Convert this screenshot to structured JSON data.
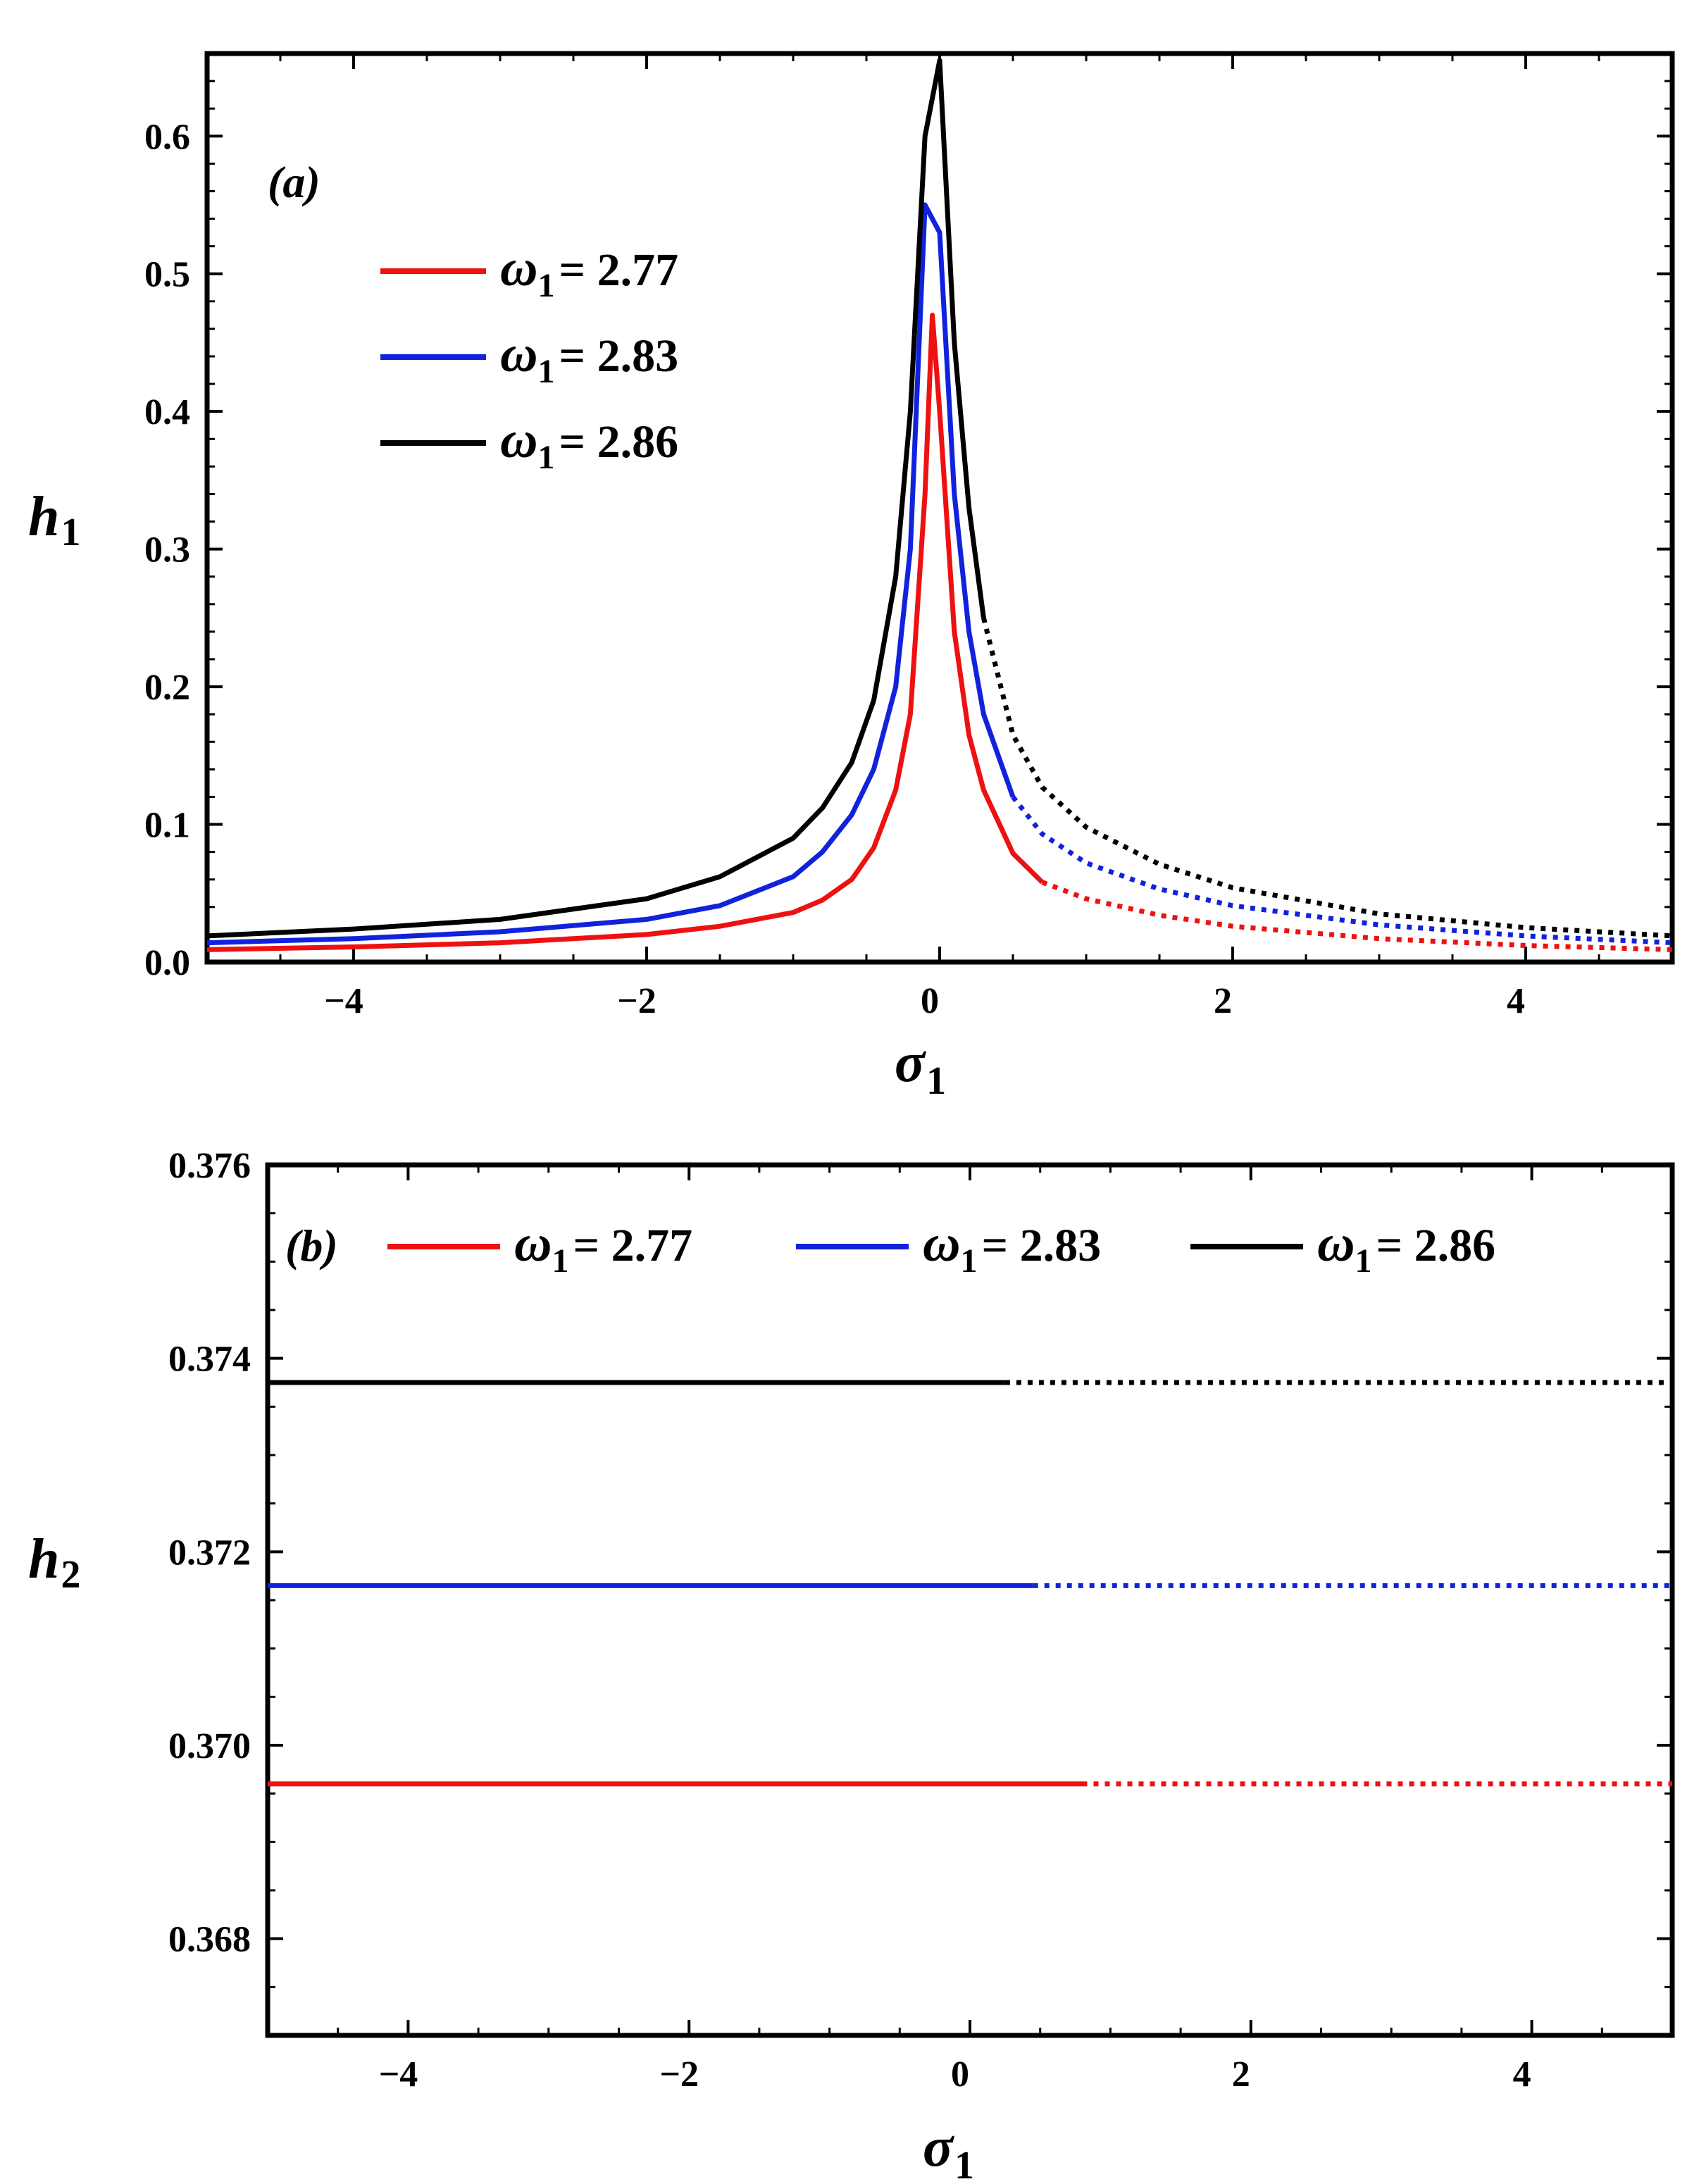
{
  "chart_data": [
    {
      "type": "line",
      "panel_label": "(a)",
      "xlabel": "σ",
      "xlabel_sub": "1",
      "ylabel": "h",
      "ylabel_sub": "1",
      "xlim": [
        -5,
        5
      ],
      "ylim": [
        0,
        0.66
      ],
      "xticks": [
        -4,
        -2,
        0,
        2,
        4
      ],
      "xtick_labels": [
        "−4",
        "−2",
        "0",
        "2",
        "4"
      ],
      "yticks": [
        0,
        0.1,
        0.2,
        0.3,
        0.4,
        0.5,
        0.6
      ],
      "ytick_labels": [
        "0.0",
        "0.1",
        "0.2",
        "0.3",
        "0.4",
        "0.5",
        "0.6"
      ],
      "legend_position": "upper-left",
      "note": "solid = stable, dotted = unstable",
      "series": [
        {
          "name": "ω1 = 2.77",
          "symbol": "ω",
          "sub": "1",
          "eq": "= 2.77",
          "color": "#ee1111",
          "x": [
            -5,
            -4,
            -3,
            -2,
            -1.5,
            -1,
            -0.8,
            -0.6,
            -0.45,
            -0.3,
            -0.2,
            -0.1,
            -0.05,
            0,
            0.1,
            0.2,
            0.3,
            0.5,
            0.7,
            1,
            1.5,
            2,
            3,
            4,
            5
          ],
          "y": [
            0.009,
            0.011,
            0.014,
            0.02,
            0.026,
            0.036,
            0.045,
            0.06,
            0.083,
            0.125,
            0.18,
            0.34,
            0.47,
            0.4,
            0.24,
            0.165,
            0.125,
            0.079,
            0.058,
            0.046,
            0.034,
            0.026,
            0.017,
            0.012,
            0.009
          ],
          "stable_until": 0.7
        },
        {
          "name": "ω1 = 2.83",
          "symbol": "ω",
          "sub": "1",
          "eq": "= 2.83",
          "color": "#1122dd",
          "x": [
            -5,
            -4,
            -3,
            -2,
            -1.5,
            -1,
            -0.8,
            -0.6,
            -0.45,
            -0.3,
            -0.2,
            -0.1,
            0,
            0.1,
            0.2,
            0.3,
            0.5,
            0.7,
            1,
            1.5,
            2,
            3,
            4,
            5
          ],
          "y": [
            0.014,
            0.017,
            0.022,
            0.031,
            0.041,
            0.062,
            0.08,
            0.107,
            0.14,
            0.2,
            0.3,
            0.55,
            0.53,
            0.34,
            0.24,
            0.18,
            0.12,
            0.093,
            0.072,
            0.053,
            0.041,
            0.027,
            0.019,
            0.014
          ],
          "stable_until": 0.5
        },
        {
          "name": "ω1 = 2.86",
          "symbol": "ω",
          "sub": "1",
          "eq": "= 2.86",
          "color": "#000000",
          "x": [
            -5,
            -4,
            -3,
            -2,
            -1.5,
            -1,
            -0.8,
            -0.6,
            -0.45,
            -0.3,
            -0.2,
            -0.1,
            0,
            0.1,
            0.2,
            0.3,
            0.5,
            0.7,
            1,
            1.5,
            2,
            3,
            4,
            5
          ],
          "y": [
            0.019,
            0.024,
            0.031,
            0.046,
            0.062,
            0.09,
            0.112,
            0.145,
            0.19,
            0.28,
            0.4,
            0.6,
            0.655,
            0.45,
            0.33,
            0.25,
            0.165,
            0.127,
            0.098,
            0.071,
            0.054,
            0.035,
            0.025,
            0.019
          ],
          "stable_until": 0.3
        }
      ]
    },
    {
      "type": "line",
      "panel_label": "(b)",
      "xlabel": "σ",
      "xlabel_sub": "1",
      "ylabel": "h",
      "ylabel_sub": "2",
      "xlim": [
        -5,
        5
      ],
      "ylim": [
        0.367,
        0.376
      ],
      "xticks": [
        -4,
        -2,
        0,
        2,
        4
      ],
      "xtick_labels": [
        "−4",
        "−2",
        "0",
        "2",
        "4"
      ],
      "yticks": [
        0.368,
        0.37,
        0.372,
        0.374,
        0.376
      ],
      "ytick_labels": [
        "0.368",
        "0.370",
        "0.372",
        "0.374",
        "0.376"
      ],
      "legend_position": "top",
      "note": "solid = stable, dotted = unstable",
      "series": [
        {
          "name": "ω1 = 2.77",
          "symbol": "ω",
          "sub": "1",
          "eq": "= 2.77",
          "color": "#ee1111",
          "x": [
            -5,
            5
          ],
          "y": [
            0.3696,
            0.3696
          ],
          "stable_until": 0.8
        },
        {
          "name": "ω1 = 2.83",
          "symbol": "ω",
          "sub": "1",
          "eq": "= 2.83",
          "color": "#1122dd",
          "x": [
            -5,
            5
          ],
          "y": [
            0.37165,
            0.37165
          ],
          "stable_until": 0.45
        },
        {
          "name": "ω1 = 2.86",
          "symbol": "ω",
          "sub": "1",
          "eq": "= 2.86",
          "color": "#000000",
          "x": [
            -5,
            5
          ],
          "y": [
            0.37375,
            0.37375
          ],
          "stable_until": 0.25
        }
      ]
    }
  ]
}
